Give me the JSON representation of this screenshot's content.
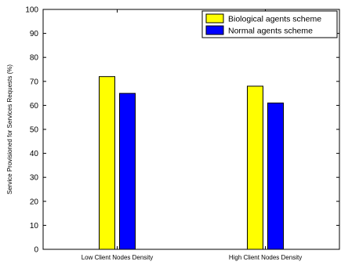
{
  "chart_data": {
    "type": "bar",
    "title": "",
    "xlabel": "",
    "ylabel": "Service Provisioned for Services Requests (%)",
    "categories": [
      "Low Client Nodes Density",
      "High Client Nodes Density"
    ],
    "series": [
      {
        "name": "Biological agents scheme",
        "color": "#ffff00",
        "values": [
          72,
          68
        ]
      },
      {
        "name": "Normal agents scheme",
        "color": "#0000ff",
        "values": [
          65,
          61
        ]
      }
    ],
    "ylim": [
      0,
      100
    ],
    "yticks": [
      0,
      10,
      20,
      30,
      40,
      50,
      60,
      70,
      80,
      90,
      100
    ],
    "grid": false,
    "legend_position": "top-right"
  }
}
